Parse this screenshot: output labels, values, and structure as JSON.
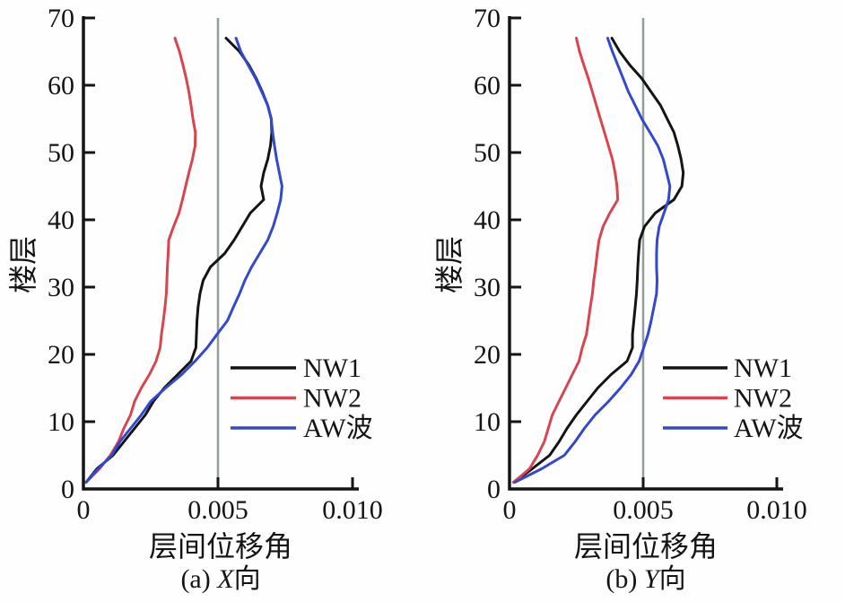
{
  "figure_title": "story-drift-ratio-comparison",
  "colors": {
    "axis": "#141414",
    "ref_line": "#8fa096",
    "nw1": "#141414",
    "nw2": "#d8454f",
    "aw": "#3348cc",
    "background": "#fefefe"
  },
  "chart_data": [
    {
      "id": "a",
      "type": "line",
      "xlabel": "层间位移角",
      "ylabel": "楼层",
      "caption": {
        "prefix": "(a) ",
        "axis": "X",
        "suffix": "向"
      },
      "xlim": [
        0,
        0.01
      ],
      "ylim": [
        0,
        70
      ],
      "grid": false,
      "legend_position": "lower right inside",
      "ref_line_x": 0.005,
      "xticks": [
        {
          "value": 0,
          "label": "0"
        },
        {
          "value": 0.005,
          "label": "0.005"
        },
        {
          "value": 0.01,
          "label": "0.010"
        }
      ],
      "yticks": [
        {
          "value": 0,
          "label": "0"
        },
        {
          "value": 10,
          "label": "10"
        },
        {
          "value": 20,
          "label": "20"
        },
        {
          "value": 30,
          "label": "30"
        },
        {
          "value": 40,
          "label": "40"
        },
        {
          "value": 50,
          "label": "50"
        },
        {
          "value": 60,
          "label": "60"
        },
        {
          "value": 70,
          "label": "70"
        }
      ],
      "floors": [
        1,
        3,
        5,
        7,
        9,
        11,
        13,
        15,
        17,
        19,
        21,
        23,
        25,
        27,
        29,
        31,
        33,
        35,
        37,
        39,
        41,
        43,
        45,
        47,
        49,
        51,
        53,
        55,
        57,
        59,
        61,
        63,
        65,
        67
      ],
      "series": [
        {
          "name": "NW1",
          "color": "#141414",
          "drift": [
            0.0001,
            0.0005,
            0.0011,
            0.0015,
            0.0019,
            0.0023,
            0.0026,
            0.003,
            0.0035,
            0.004,
            0.00418,
            0.0042,
            0.00422,
            0.00426,
            0.00433,
            0.00445,
            0.00472,
            0.00525,
            0.0056,
            0.0059,
            0.0062,
            0.0067,
            0.0066,
            0.0067,
            0.00685,
            0.00695,
            0.007,
            0.00698,
            0.00685,
            0.00665,
            0.00642,
            0.00615,
            0.0058,
            0.0053
          ]
        },
        {
          "name": "NW2",
          "color": "#d8454f",
          "drift": [
            0.0001,
            0.0006,
            0.001,
            0.0013,
            0.0015,
            0.00175,
            0.0019,
            0.00215,
            0.00245,
            0.0027,
            0.00285,
            0.0029,
            0.00297,
            0.00303,
            0.00308,
            0.0031,
            0.00312,
            0.00315,
            0.00317,
            0.00335,
            0.00355,
            0.00368,
            0.0038,
            0.00392,
            0.00405,
            0.00415,
            0.00416,
            0.00407,
            0.004,
            0.00392,
            0.00382,
            0.0037,
            0.00357,
            0.0034
          ]
        },
        {
          "name": "AW波",
          "color": "#3348cc",
          "drift": [
            0.0001,
            0.00055,
            0.00105,
            0.00135,
            0.00175,
            0.00215,
            0.0025,
            0.00305,
            0.00365,
            0.00415,
            0.0046,
            0.00497,
            0.00535,
            0.00557,
            0.0058,
            0.006,
            0.00625,
            0.00655,
            0.00685,
            0.00705,
            0.0072,
            0.00733,
            0.00738,
            0.00728,
            0.00718,
            0.0071,
            0.00703,
            0.00698,
            0.00685,
            0.00663,
            0.0064,
            0.00612,
            0.00585,
            0.00567
          ]
        }
      ]
    },
    {
      "id": "b",
      "type": "line",
      "xlabel": "层间位移角",
      "ylabel": "楼层",
      "caption": {
        "prefix": "(b) ",
        "axis": "Y",
        "suffix": "向"
      },
      "xlim": [
        0,
        0.01
      ],
      "ylim": [
        0,
        70
      ],
      "grid": false,
      "legend_position": "lower right inside",
      "ref_line_x": 0.005,
      "xticks": [
        {
          "value": 0,
          "label": "0"
        },
        {
          "value": 0.005,
          "label": "0.005"
        },
        {
          "value": 0.01,
          "label": "0.010"
        }
      ],
      "yticks": [
        {
          "value": 0,
          "label": "0"
        },
        {
          "value": 10,
          "label": "10"
        },
        {
          "value": 20,
          "label": "20"
        },
        {
          "value": 30,
          "label": "30"
        },
        {
          "value": 40,
          "label": "40"
        },
        {
          "value": 50,
          "label": "50"
        },
        {
          "value": 60,
          "label": "60"
        },
        {
          "value": 70,
          "label": "70"
        }
      ],
      "floors": [
        1,
        3,
        5,
        7,
        9,
        11,
        13,
        15,
        17,
        19,
        21,
        23,
        25,
        27,
        29,
        31,
        33,
        35,
        37,
        39,
        41,
        43,
        45,
        47,
        49,
        51,
        53,
        55,
        57,
        59,
        61,
        63,
        65,
        67
      ],
      "series": [
        {
          "name": "NW1",
          "color": "#141414",
          "drift": [
            0.00015,
            0.00085,
            0.0015,
            0.00185,
            0.00215,
            0.0025,
            0.0029,
            0.0033,
            0.0038,
            0.0044,
            0.0046,
            0.0046,
            0.00465,
            0.0047,
            0.00475,
            0.00478,
            0.0048,
            0.00483,
            0.00487,
            0.00505,
            0.00545,
            0.00615,
            0.00645,
            0.0065,
            0.00642,
            0.0063,
            0.00615,
            0.0059,
            0.00565,
            0.0053,
            0.00495,
            0.0045,
            0.00412,
            0.00383
          ]
        },
        {
          "name": "NW2",
          "color": "#d8454f",
          "drift": [
            0.00015,
            0.00075,
            0.00105,
            0.0013,
            0.00145,
            0.0016,
            0.00185,
            0.0021,
            0.00235,
            0.0026,
            0.00272,
            0.00288,
            0.00295,
            0.00302,
            0.0031,
            0.00315,
            0.00322,
            0.00328,
            0.00335,
            0.0035,
            0.00375,
            0.00405,
            0.00402,
            0.00395,
            0.00385,
            0.0037,
            0.00355,
            0.0034,
            0.00325,
            0.0031,
            0.00295,
            0.00278,
            0.00262,
            0.0025
          ]
        },
        {
          "name": "AW波",
          "color": "#3348cc",
          "drift": [
            0.0002,
            0.0012,
            0.00205,
            0.00245,
            0.0028,
            0.0032,
            0.0037,
            0.00415,
            0.00455,
            0.00485,
            0.00502,
            0.00518,
            0.0053,
            0.0054,
            0.0055,
            0.00552,
            0.0055,
            0.0055,
            0.00552,
            0.0056,
            0.00578,
            0.00595,
            0.006,
            0.00588,
            0.00575,
            0.00555,
            0.00525,
            0.00495,
            0.0047,
            0.00445,
            0.00425,
            0.00405,
            0.00385,
            0.00367
          ]
        }
      ]
    }
  ]
}
